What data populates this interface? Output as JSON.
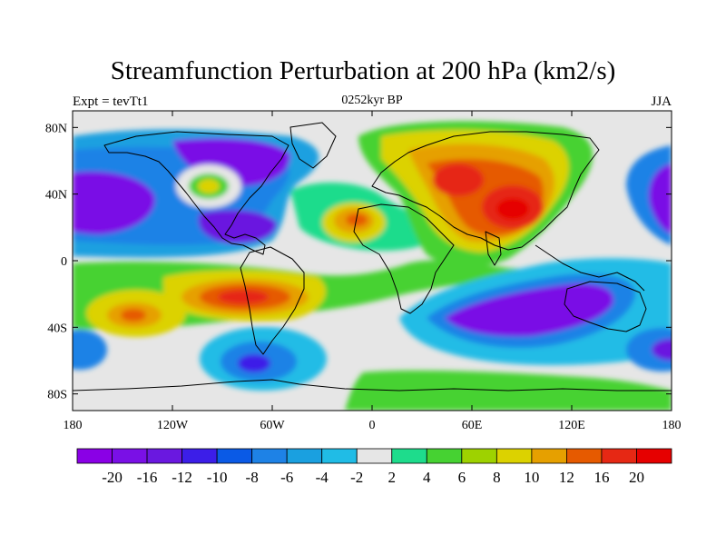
{
  "header": {
    "title": "Streamfunction Perturbation at 200 hPa (km2/s)",
    "left_string": "Expt = tevTt1",
    "center_string": "0252kyr BP",
    "right_string": "JJA"
  },
  "map": {
    "projection": "cylindrical equidistant",
    "lon_range": [
      -180,
      180
    ],
    "lat_range": [
      -90,
      90
    ],
    "y_ticks": [
      {
        "lat": 80,
        "label": "80N"
      },
      {
        "lat": 40,
        "label": "40N"
      },
      {
        "lat": 0,
        "label": "0"
      },
      {
        "lat": -40,
        "label": "40S"
      },
      {
        "lat": -80,
        "label": "80S"
      }
    ],
    "x_ticks": [
      {
        "lon": -180,
        "label": "180"
      },
      {
        "lon": -120,
        "label": "120W"
      },
      {
        "lon": -60,
        "label": "60W"
      },
      {
        "lon": 0,
        "label": "0"
      },
      {
        "lon": 60,
        "label": "60E"
      },
      {
        "lon": 120,
        "label": "120E"
      },
      {
        "lon": 180,
        "label": "180"
      }
    ],
    "background_color": "#e6e6e6",
    "coastline_color": "#000000",
    "features": [
      {
        "name": "north-pacific-low",
        "lon": -150,
        "lat": 38,
        "value": -16
      },
      {
        "name": "north-america-low",
        "lon": -95,
        "lat": 55,
        "value": -16
      },
      {
        "name": "gulf-of-mexico-low",
        "lon": -80,
        "lat": 20,
        "value": -12
      },
      {
        "name": "northeast-pacific-ring",
        "lon": -100,
        "lat": 43,
        "value": 8
      },
      {
        "name": "north-atlantic-high",
        "lon": -10,
        "lat": 20,
        "value": 12
      },
      {
        "name": "eurasia-high",
        "lon": 80,
        "lat": 35,
        "value": 20
      },
      {
        "name": "indian-ocean-low",
        "lon": 100,
        "lat": -30,
        "value": -20
      },
      {
        "name": "south-america-high",
        "lon": -65,
        "lat": -22,
        "value": 16
      },
      {
        "name": "south-pacific-high",
        "lon": -145,
        "lat": -32,
        "value": 12
      },
      {
        "name": "southern-ocean-low",
        "lon": -70,
        "lat": -60,
        "value": -10
      },
      {
        "name": "west-pacific-low",
        "lon": 170,
        "lat": 30,
        "value": -16
      }
    ]
  },
  "colorbar": {
    "labels": [
      "-20",
      "-16",
      "-12",
      "-10",
      "-8",
      "-6",
      "-4",
      "-2",
      "2",
      "4",
      "6",
      "8",
      "10",
      "12",
      "16",
      "20"
    ],
    "colors": [
      "#8a00e6",
      "#7a10e6",
      "#6a18e0",
      "#3c1ee8",
      "#0a5ae6",
      "#1e82e6",
      "#1aa0e0",
      "#20bce6",
      "#e6e6e6",
      "#1edc8c",
      "#46d232",
      "#9ed200",
      "#dcd200",
      "#e6a000",
      "#e65a00",
      "#e62814",
      "#e60000"
    ]
  }
}
